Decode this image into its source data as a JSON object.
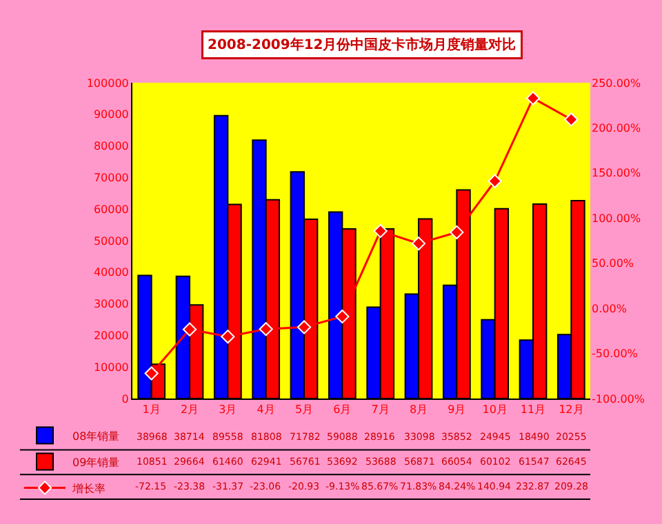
{
  "chart_data": {
    "type": "bar",
    "title": "2008-2009年12月份中国皮卡市场月度销量对比",
    "categories": [
      "1月",
      "2月",
      "3月",
      "4月",
      "5月",
      "6月",
      "7月",
      "8月",
      "9月",
      "10月",
      "11月",
      "12月"
    ],
    "series": [
      {
        "name": "08年销量",
        "color": "#0000ff",
        "values": [
          38968,
          38714,
          89558,
          81808,
          71782,
          59088,
          28916,
          33098,
          35852,
          24945,
          18490,
          20255
        ]
      },
      {
        "name": "09年销量",
        "color": "#ff0000",
        "values": [
          10851,
          29664,
          61460,
          62941,
          56761,
          53692,
          53688,
          56871,
          66054,
          60102,
          61547,
          62645
        ]
      },
      {
        "name": "增长率",
        "type": "line",
        "axis": "y2",
        "color": "#ff0000",
        "marker": "diamond",
        "values": [
          -72.15,
          -23.38,
          -31.37,
          -23.06,
          -20.93,
          -9.13,
          85.67,
          71.83,
          84.24,
          140.94,
          232.87,
          209.28
        ],
        "value_labels": [
          "-72.15",
          "-23.38",
          "-31.37",
          "-23.06",
          "-20.93",
          "-9.13%",
          "85.67%",
          "71.83%",
          "84.24%",
          "140.94",
          "232.87",
          "209.28"
        ]
      }
    ],
    "ylim": [
      0,
      100000
    ],
    "yticks": [
      0,
      10000,
      20000,
      30000,
      40000,
      50000,
      60000,
      70000,
      80000,
      90000,
      100000
    ],
    "y2lim": [
      -100,
      250
    ],
    "y2ticks": [
      {
        "value": -100,
        "label": "-100.00%"
      },
      {
        "value": -50,
        "label": "-50.00%"
      },
      {
        "value": 0,
        "label": "0.00%"
      },
      {
        "value": 50,
        "label": "50.00%"
      },
      {
        "value": 100,
        "label": "100.00%"
      },
      {
        "value": 150,
        "label": "150.00%"
      },
      {
        "value": 200,
        "label": "200.00%"
      },
      {
        "value": 250,
        "label": "250.00%"
      }
    ],
    "data_labels": true,
    "grid": false,
    "legend": "bottom left"
  }
}
